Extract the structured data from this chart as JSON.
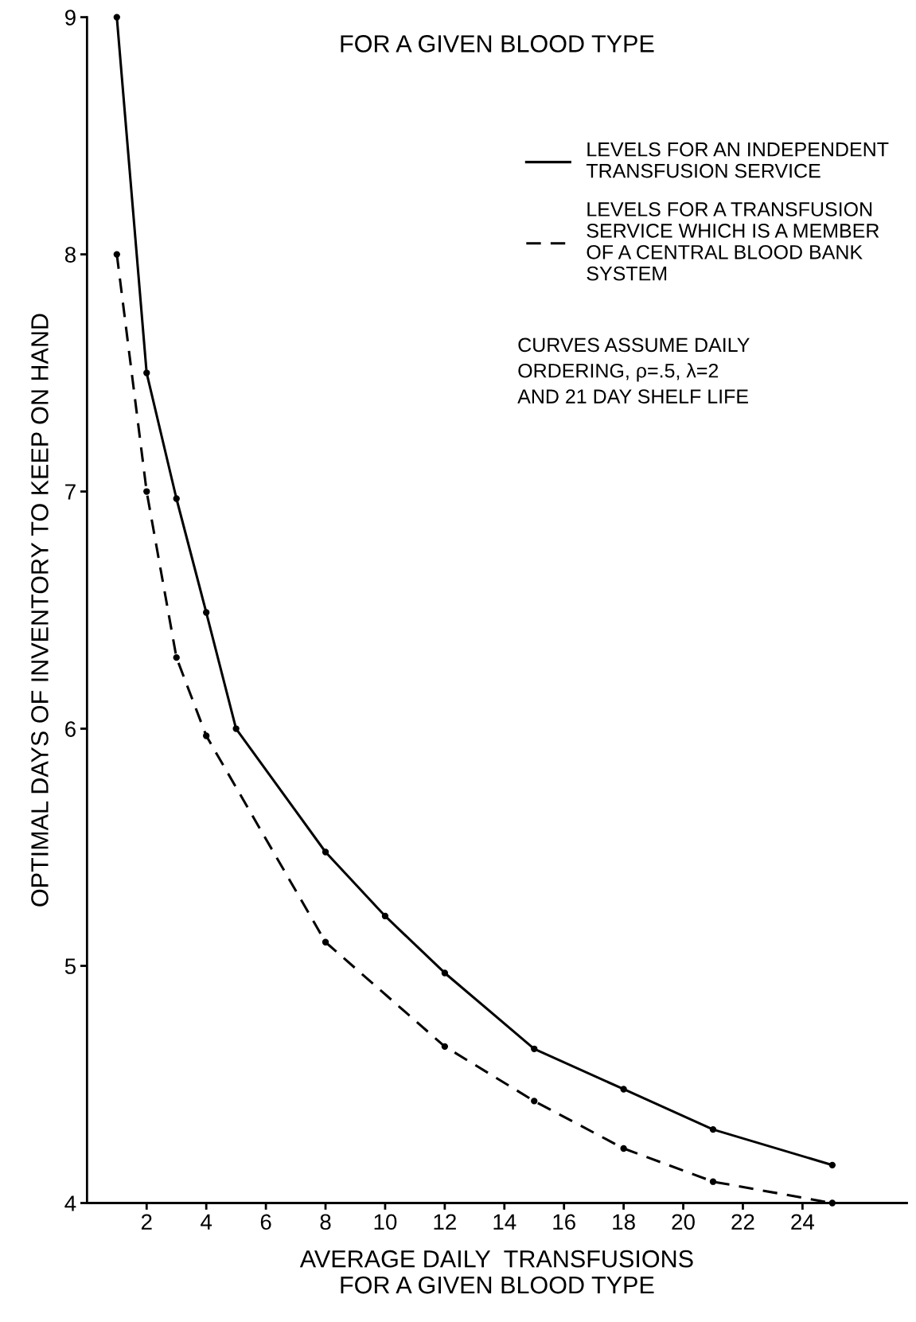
{
  "chart_data": {
    "type": "line",
    "title": "FOR A GIVEN BLOOD TYPE",
    "xlabel": "AVERAGE DAILY  TRANSFUSIONS\nFOR A GIVEN BLOOD TYPE",
    "ylabel": "OPTIMAL DAYS OF INVENTORY TO KEEP ON HAND",
    "series": [
      {
        "name": "LEVELS FOR AN INDEPENDENT\nTRANSFUSION SERVICE",
        "color": "#000000",
        "line_style": "solid",
        "x": [
          1,
          2,
          3,
          4,
          5,
          8,
          10,
          12,
          15,
          18,
          21,
          25
        ],
        "values": [
          9.0,
          7.5,
          6.97,
          6.49,
          6.0,
          5.48,
          5.21,
          4.97,
          4.65,
          4.48,
          4.31,
          4.16
        ]
      },
      {
        "name": "LEVELS FOR A TRANSFUSION\nSERVICE WHICH IS A MEMBER\nOF A CENTRAL BLOOD BANK\nSYSTEM",
        "color": "#000000",
        "line_style": "dashed",
        "x": [
          1,
          2,
          3,
          4,
          8,
          12,
          15,
          18,
          21,
          25
        ],
        "values": [
          8.0,
          7.0,
          6.3,
          5.97,
          5.1,
          4.66,
          4.43,
          4.23,
          4.09,
          4.0
        ]
      }
    ],
    "annotations": [
      "CURVES ASSUME DAILY\nORDERING, ρ=.5, λ=2\nAND 21 DAY SHELF LIFE"
    ],
    "marker": "circle",
    "legend": "top right",
    "grid": false,
    "xlim": [
      0,
      27.5
    ],
    "xticks": [
      2,
      4,
      6,
      8,
      10,
      12,
      14,
      16,
      18,
      20,
      22,
      24
    ],
    "ylim": [
      4,
      9
    ],
    "yticks": [
      4,
      5,
      6,
      7,
      8,
      9
    ]
  }
}
